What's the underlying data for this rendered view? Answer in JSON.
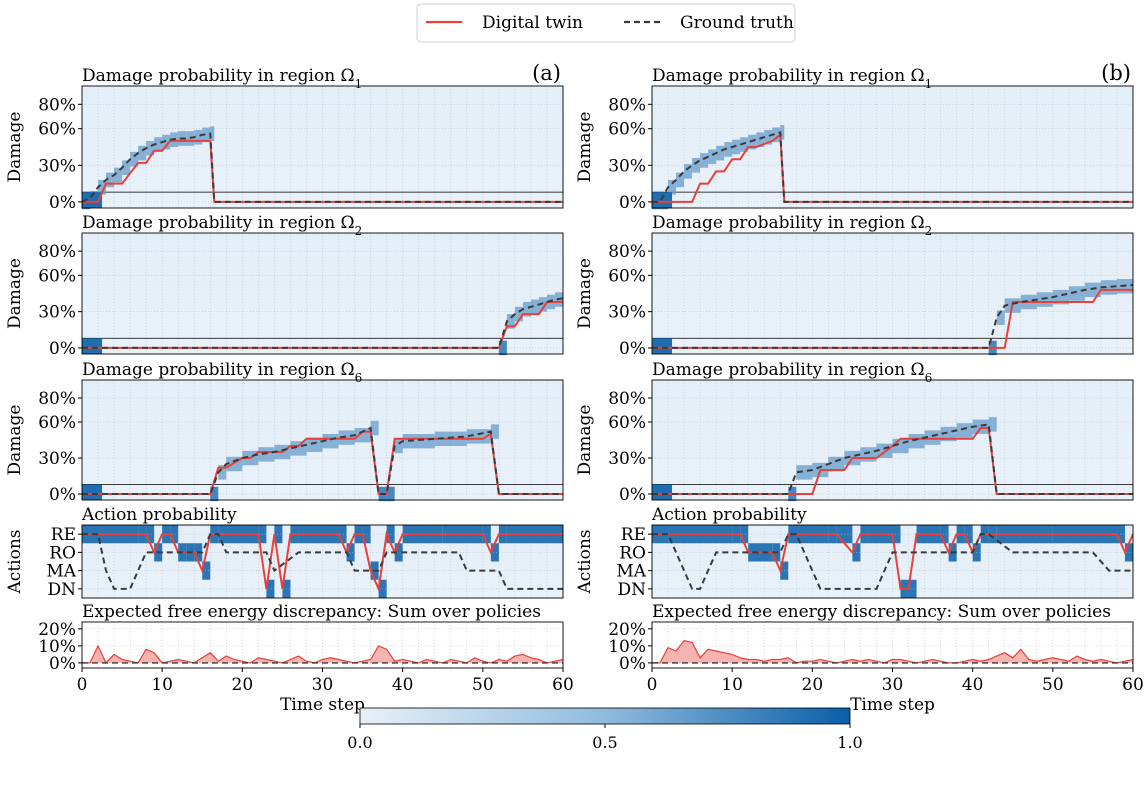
{
  "legend": {
    "items": [
      {
        "label": "Digital twin",
        "color": "#e8403a",
        "style": "solid"
      },
      {
        "label": "Ground truth",
        "color": "#3a3a3a",
        "style": "dashed"
      }
    ]
  },
  "colorbar": {
    "ticks": [
      "0.0",
      "0.5",
      "1.0"
    ],
    "color_low": "#e8f0f8",
    "color_high": "#0a5fa8"
  },
  "x_axis": {
    "label": "Time step",
    "ticks": [
      "0",
      "10",
      "20",
      "30",
      "40",
      "50",
      "60"
    ],
    "range": [
      0,
      60
    ]
  },
  "panel_titles": {
    "omega1": "Damage probability in region Ω",
    "omega1_sub": "1",
    "omega2": "Damage probability in region Ω",
    "omega2_sub": "2",
    "omega6": "Damage probability in region Ω",
    "omega6_sub": "6",
    "actions": "Action probability",
    "efe": "Expected free energy discrepancy: Sum over policies"
  },
  "damage_axis": {
    "label": "Damage",
    "ticks": [
      "80%",
      "60%",
      "30%",
      "0%"
    ],
    "values": [
      80,
      60,
      30,
      0
    ]
  },
  "action_axis": {
    "label": "Actions",
    "ticks": [
      "RE",
      "RO",
      "MA",
      "DN"
    ]
  },
  "efe_axis": {
    "ticks": [
      "20%",
      "10%",
      "0%"
    ],
    "values": [
      20,
      10,
      0
    ]
  },
  "columns": [
    {
      "tag": "(a)"
    },
    {
      "tag": "(b)"
    }
  ],
  "chart_data": [
    {
      "type": "line",
      "column": "(a)",
      "panel": "Damage probability in region Ω1",
      "ylabel": "Damage",
      "ylim": [
        -5,
        95
      ],
      "series": [
        {
          "name": "Digital twin",
          "x": [
            0,
            2,
            3,
            5,
            7,
            8,
            9,
            10,
            11,
            13,
            15,
            16,
            16.5,
            60
          ],
          "y": [
            0,
            0,
            15,
            15,
            32,
            32,
            42,
            42,
            50,
            50,
            50,
            50,
            0,
            0
          ]
        },
        {
          "name": "Ground truth",
          "x": [
            0,
            1,
            2,
            3,
            4,
            5,
            6,
            7,
            8,
            9,
            10,
            11,
            12,
            13,
            14,
            15,
            16,
            16.5,
            60
          ],
          "y": [
            0,
            3,
            12,
            18,
            22,
            28,
            35,
            40,
            44,
            47,
            49,
            51,
            52,
            52,
            53,
            55,
            56,
            0,
            0
          ]
        }
      ]
    },
    {
      "type": "line",
      "column": "(a)",
      "panel": "Damage probability in region Ω2",
      "ylabel": "Damage",
      "ylim": [
        -5,
        95
      ],
      "series": [
        {
          "name": "Digital twin",
          "x": [
            0,
            52,
            53,
            54,
            55,
            56,
            57,
            58,
            59,
            60
          ],
          "y": [
            0,
            0,
            18,
            18,
            28,
            28,
            28,
            38,
            38,
            38
          ]
        },
        {
          "name": "Ground truth",
          "x": [
            0,
            52,
            53,
            54,
            55,
            56,
            57,
            58,
            59,
            60
          ],
          "y": [
            0,
            0,
            22,
            28,
            32,
            34,
            36,
            38,
            40,
            41
          ]
        }
      ]
    },
    {
      "type": "line",
      "column": "(a)",
      "panel": "Damage probability in region Ω6",
      "ylabel": "Damage",
      "ylim": [
        -5,
        95
      ],
      "series": [
        {
          "name": "Digital twin",
          "x": [
            0,
            16,
            17,
            18,
            20,
            21,
            22,
            24,
            25,
            26,
            27,
            28,
            30,
            32,
            34,
            35,
            36,
            37,
            38,
            39,
            40,
            45,
            50,
            51,
            52,
            60
          ],
          "y": [
            0,
            0,
            22,
            22,
            30,
            30,
            35,
            35,
            35,
            40,
            40,
            46,
            46,
            46,
            46,
            52,
            52,
            0,
            0,
            46,
            46,
            46,
            46,
            50,
            0,
            0
          ]
        },
        {
          "name": "Ground truth",
          "x": [
            0,
            16,
            17,
            18,
            20,
            22,
            24,
            26,
            28,
            30,
            32,
            34,
            36,
            37,
            38,
            39,
            40,
            44,
            48,
            51,
            52,
            60
          ],
          "y": [
            0,
            0,
            18,
            25,
            30,
            33,
            35,
            38,
            41,
            44,
            47,
            49,
            55,
            0,
            0,
            40,
            44,
            46,
            48,
            52,
            0,
            0
          ]
        }
      ]
    },
    {
      "type": "line",
      "column": "(a)",
      "panel": "Action probability",
      "ylabel": "Actions",
      "categories": [
        "RE",
        "RO",
        "MA",
        "DN"
      ],
      "series": [
        {
          "name": "Digital twin",
          "x": [
            0,
            2,
            7,
            8,
            9,
            10,
            11,
            12,
            13,
            14,
            15,
            16,
            17,
            22,
            23,
            24,
            25,
            26,
            27,
            32,
            33,
            34,
            35,
            36,
            37,
            38,
            39,
            40,
            45,
            50,
            51,
            52,
            53,
            60
          ],
          "y": [
            0,
            0,
            0,
            0,
            1,
            0,
            0,
            1,
            1,
            1,
            2,
            0,
            0,
            0,
            3,
            0,
            3,
            0,
            0,
            0,
            1,
            0,
            0,
            2,
            3,
            0,
            1,
            0,
            0,
            0,
            1,
            0,
            0,
            0
          ]
        },
        {
          "name": "Ground truth",
          "x": [
            0,
            2,
            3,
            4,
            6,
            7,
            8,
            10,
            15,
            16,
            17,
            18,
            20,
            23,
            24,
            27,
            30,
            33,
            34,
            37,
            38,
            40,
            47,
            48,
            52,
            53,
            56,
            60
          ],
          "y": [
            0,
            0,
            2,
            3,
            3,
            2,
            1,
            1,
            1,
            0,
            0,
            1,
            1,
            1,
            2,
            1,
            1,
            1,
            2,
            2,
            1,
            1,
            1,
            2,
            2,
            3,
            3,
            3
          ]
        }
      ]
    },
    {
      "type": "area",
      "column": "(a)",
      "panel": "Expected free energy discrepancy: Sum over policies",
      "ylim": [
        -3,
        24
      ],
      "series": [
        {
          "name": "Digital twin",
          "x": [
            0,
            1,
            2,
            3,
            4,
            5,
            6,
            7,
            8,
            9,
            10,
            11,
            12,
            13,
            14,
            15,
            16,
            17,
            18,
            19,
            20,
            21,
            22,
            23,
            24,
            25,
            26,
            27,
            28,
            29,
            30,
            31,
            32,
            33,
            34,
            35,
            36,
            37,
            38,
            39,
            40,
            41,
            42,
            43,
            44,
            45,
            46,
            47,
            48,
            49,
            50,
            51,
            52,
            53,
            54,
            55,
            56,
            57,
            58,
            59,
            60
          ],
          "y": [
            0,
            0,
            10,
            0,
            5,
            2,
            1,
            0,
            8,
            6,
            0,
            1,
            2,
            1,
            0,
            3,
            6,
            1,
            4,
            2,
            1,
            0,
            3,
            2,
            1,
            0,
            2,
            4,
            1,
            0,
            2,
            3,
            2,
            1,
            0,
            1,
            2,
            10,
            8,
            1,
            2,
            1,
            0,
            2,
            1,
            0,
            2,
            1,
            0,
            3,
            1,
            0,
            2,
            1,
            4,
            5,
            3,
            2,
            0,
            1,
            2
          ]
        },
        {
          "name": "Ground truth",
          "x": [
            0,
            60
          ],
          "y": [
            0,
            0
          ]
        }
      ]
    },
    {
      "type": "line",
      "column": "(b)",
      "panel": "Damage probability in region Ω1",
      "ylabel": "Damage",
      "ylim": [
        -5,
        95
      ],
      "series": [
        {
          "name": "Digital twin",
          "x": [
            0,
            2,
            3,
            5,
            6,
            7,
            8,
            9,
            10,
            11,
            12,
            13,
            15,
            16,
            16.5,
            60
          ],
          "y": [
            0,
            0,
            0,
            0,
            15,
            15,
            25,
            25,
            35,
            35,
            45,
            45,
            50,
            55,
            0,
            0
          ]
        },
        {
          "name": "Ground truth",
          "x": [
            0,
            1,
            2,
            3,
            4,
            5,
            6,
            7,
            8,
            9,
            10,
            11,
            12,
            13,
            14,
            15,
            16,
            16.5,
            60
          ],
          "y": [
            0,
            0,
            12,
            18,
            25,
            30,
            34,
            37,
            40,
            43,
            45,
            47,
            49,
            51,
            53,
            55,
            57,
            0,
            0
          ]
        }
      ]
    },
    {
      "type": "line",
      "column": "(b)",
      "panel": "Damage probability in region Ω2",
      "ylabel": "Damage",
      "ylim": [
        -5,
        95
      ],
      "series": [
        {
          "name": "Digital twin",
          "x": [
            0,
            44,
            45,
            50,
            51,
            55,
            56,
            57,
            60
          ],
          "y": [
            0,
            0,
            38,
            38,
            38,
            38,
            48,
            48,
            48
          ]
        },
        {
          "name": "Ground truth",
          "x": [
            0,
            42,
            43,
            44,
            46,
            48,
            50,
            52,
            54,
            56,
            58,
            60
          ],
          "y": [
            0,
            0,
            25,
            35,
            38,
            40,
            42,
            45,
            48,
            50,
            51,
            52
          ]
        }
      ]
    },
    {
      "type": "line",
      "column": "(b)",
      "panel": "Damage probability in region Ω6",
      "ylabel": "Damage",
      "ylim": [
        -5,
        95
      ],
      "series": [
        {
          "name": "Digital twin",
          "x": [
            0,
            17,
            18,
            20,
            21,
            22,
            24,
            25,
            26,
            28,
            30,
            31,
            33,
            35,
            36,
            38,
            40,
            41,
            42,
            43,
            60
          ],
          "y": [
            0,
            0,
            0,
            0,
            20,
            20,
            20,
            30,
            30,
            30,
            40,
            46,
            46,
            46,
            46,
            46,
            46,
            55,
            55,
            0,
            0
          ]
        },
        {
          "name": "Ground truth",
          "x": [
            0,
            17,
            18,
            20,
            22,
            24,
            26,
            28,
            30,
            32,
            34,
            36,
            38,
            40,
            42,
            43,
            60
          ],
          "y": [
            0,
            0,
            18,
            20,
            25,
            30,
            33,
            36,
            40,
            44,
            47,
            50,
            53,
            56,
            58,
            0,
            0
          ]
        }
      ]
    },
    {
      "type": "line",
      "column": "(b)",
      "panel": "Action probability",
      "ylabel": "Actions",
      "categories": [
        "RE",
        "RO",
        "MA",
        "DN"
      ],
      "series": [
        {
          "name": "Digital twin",
          "x": [
            0,
            2,
            10,
            11,
            12,
            15,
            16,
            17,
            22,
            23,
            25,
            26,
            27,
            30,
            31,
            32,
            33,
            36,
            37,
            38,
            39,
            40,
            41,
            42,
            43,
            50,
            58,
            59,
            60
          ],
          "y": [
            0,
            0,
            0,
            0,
            1,
            1,
            2,
            0,
            0,
            0,
            1,
            0,
            0,
            0,
            3,
            3,
            0,
            0,
            1,
            0,
            0,
            1,
            0,
            0,
            0,
            0,
            0,
            1,
            0
          ]
        },
        {
          "name": "Ground truth",
          "x": [
            0,
            2,
            3,
            4,
            5,
            6,
            7,
            8,
            16,
            17,
            18,
            19,
            20,
            21,
            22,
            27,
            28,
            29,
            30,
            35,
            36,
            40,
            41,
            42,
            45,
            50,
            55,
            57,
            58,
            59,
            60
          ],
          "y": [
            0,
            0,
            1,
            2,
            3,
            3,
            2,
            1,
            1,
            0,
            0,
            1,
            2,
            3,
            3,
            3,
            3,
            2,
            1,
            1,
            1,
            1,
            0,
            0,
            1,
            1,
            1,
            2,
            2,
            2,
            2
          ]
        }
      ]
    },
    {
      "type": "area",
      "column": "(b)",
      "panel": "Expected free energy discrepancy: Sum over policies",
      "ylim": [
        -3,
        24
      ],
      "series": [
        {
          "name": "Digital twin",
          "x": [
            0,
            1,
            2,
            3,
            4,
            5,
            6,
            7,
            8,
            9,
            10,
            11,
            12,
            13,
            14,
            15,
            16,
            17,
            18,
            19,
            20,
            21,
            22,
            23,
            24,
            25,
            26,
            27,
            28,
            29,
            30,
            31,
            32,
            33,
            34,
            35,
            36,
            37,
            38,
            39,
            40,
            41,
            42,
            43,
            44,
            45,
            46,
            47,
            48,
            49,
            50,
            51,
            52,
            53,
            54,
            55,
            56,
            57,
            58,
            59,
            60
          ],
          "y": [
            0,
            0,
            9,
            7,
            13,
            12,
            3,
            8,
            7,
            6,
            5,
            3,
            2,
            2,
            1,
            2,
            2,
            3,
            0,
            1,
            1,
            2,
            1,
            0,
            1,
            2,
            1,
            2,
            1,
            0,
            2,
            2,
            1,
            0,
            1,
            2,
            1,
            0,
            0,
            1,
            2,
            1,
            2,
            4,
            6,
            3,
            8,
            2,
            1,
            2,
            3,
            2,
            1,
            4,
            2,
            1,
            2,
            1,
            0,
            1,
            2
          ]
        },
        {
          "name": "Ground truth",
          "x": [
            0,
            60
          ],
          "y": [
            0,
            0
          ]
        }
      ]
    }
  ]
}
